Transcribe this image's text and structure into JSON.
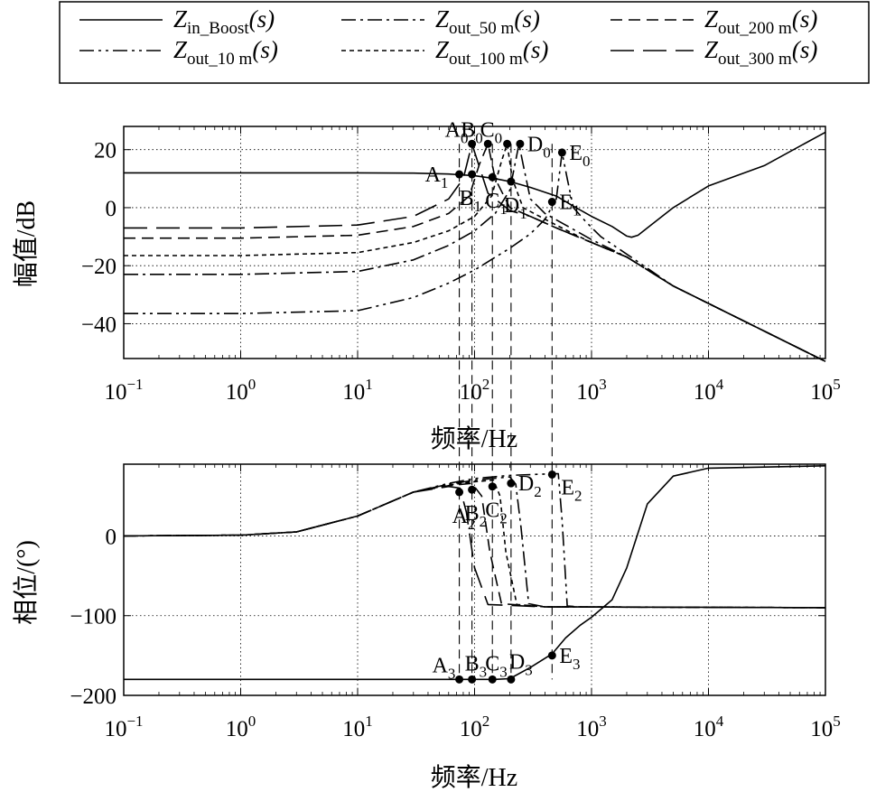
{
  "legend": {
    "entries": [
      {
        "key": "zin_boost",
        "main": "Z",
        "sub": "in_Boost",
        "tail": "(s)",
        "dash": ""
      },
      {
        "key": "zout_50",
        "main": "Z",
        "sub": "out_50 m",
        "tail": "(s)",
        "dash": "16,5,3,5"
      },
      {
        "key": "zout_200",
        "main": "Z",
        "sub": "out_200 m",
        "tail": "(s)",
        "dash": "13,7"
      },
      {
        "key": "zout_10",
        "main": "Z",
        "sub": "out_10 m",
        "tail": "(s)",
        "dash": "16,5,3,5,3,5"
      },
      {
        "key": "zout_100",
        "main": "Z",
        "sub": "out_100 m",
        "tail": "(s)",
        "dash": "5,4"
      },
      {
        "key": "zout_300",
        "main": "Z",
        "sub": "out_300 m",
        "tail": "(s)",
        "dash": "26,10"
      }
    ]
  },
  "chart_data": [
    {
      "type": "line",
      "name": "magnitude",
      "xscale": "log",
      "xlim": [
        0.1,
        100000
      ],
      "ylim": [
        -52,
        28
      ],
      "xticks": [
        {
          "base": "10",
          "exp": "−1"
        },
        {
          "base": "10",
          "exp": "0"
        },
        {
          "base": "10",
          "exp": "1"
        },
        {
          "base": "10",
          "exp": "2"
        },
        {
          "base": "10",
          "exp": "3"
        },
        {
          "base": "10",
          "exp": "4"
        },
        {
          "base": "10",
          "exp": "5"
        }
      ],
      "yticks": [
        "20",
        "0",
        "−20",
        "−40"
      ],
      "ytick_values": [
        20,
        0,
        -20,
        -40
      ],
      "xlabel": "频率/Hz",
      "ylabel": "幅值/dB",
      "grid": true,
      "series": [
        {
          "key": "zin_boost",
          "dash": "",
          "x": [
            0.1,
            10,
            30,
            60,
            100,
            150,
            200,
            300,
            500,
            700,
            1000,
            1500,
            2000,
            2200,
            2500,
            3000,
            5000,
            10000,
            30000,
            100000
          ],
          "y": [
            12,
            12,
            11.9,
            11.6,
            11,
            10,
            9,
            7,
            4,
            0.5,
            -3,
            -6.5,
            -9.8,
            -10.2,
            -9.5,
            -7,
            0,
            7.5,
            14.5,
            26
          ]
        },
        {
          "key": "zout_10",
          "dash": "16,5,3,5,3,5",
          "x": [
            0.1,
            1,
            10,
            30,
            60,
            100,
            200,
            300,
            400,
            500,
            560,
            620,
            700,
            900,
            1200,
            2000,
            5000,
            100000
          ],
          "y": [
            -36.5,
            -36.5,
            -35.5,
            -31,
            -26,
            -21.5,
            -14,
            -9,
            -4,
            3,
            19,
            10,
            0,
            -5,
            -10,
            -16,
            -27,
            -53
          ]
        },
        {
          "key": "zout_50",
          "dash": "16,5,3,5",
          "x": [
            0.1,
            1,
            10,
            30,
            60,
            100,
            150,
            200,
            240,
            260,
            300,
            400,
            600,
            1000,
            2000,
            5000,
            100000
          ],
          "y": [
            -23,
            -23,
            -22,
            -18,
            -13,
            -8,
            -2,
            6,
            22,
            15,
            3,
            -2,
            -6,
            -11,
            -17,
            -27,
            -53
          ]
        },
        {
          "key": "zout_100",
          "dash": "5,4",
          "x": [
            0.1,
            1,
            10,
            30,
            60,
            100,
            140,
            170,
            190,
            210,
            260,
            400,
            700,
            1000,
            2000,
            5000,
            100000
          ],
          "y": [
            -16.5,
            -16.5,
            -15.5,
            -12,
            -8,
            -3,
            4,
            16,
            22,
            10,
            0,
            -4,
            -9,
            -12,
            -17,
            -27,
            -53
          ]
        },
        {
          "key": "zout_200",
          "dash": "13,7",
          "x": [
            0.1,
            1,
            10,
            30,
            60,
            90,
            110,
            130,
            150,
            200,
            300,
            500,
            1000,
            2000,
            5000,
            100000
          ],
          "y": [
            -10.5,
            -10.5,
            -9.5,
            -6.5,
            -2,
            4,
            15,
            22,
            10,
            0,
            -3,
            -7,
            -12,
            -17,
            -27,
            -53
          ]
        },
        {
          "key": "zout_300",
          "dash": "26,10",
          "x": [
            0.1,
            1,
            10,
            30,
            60,
            80,
            95,
            110,
            130,
            200,
            300,
            500,
            1000,
            2000,
            5000,
            100000
          ],
          "y": [
            -7,
            -7,
            -6,
            -3,
            3,
            10,
            22,
            14,
            5,
            -1,
            -3,
            -7,
            -12,
            -17,
            -27,
            -53
          ]
        }
      ],
      "points": [
        {
          "label": "A",
          "sub": "0",
          "x": 95,
          "y": 22,
          "lpos": "ul"
        },
        {
          "label": "B",
          "sub": "0",
          "x": 130,
          "y": 22,
          "lpos": "ul"
        },
        {
          "label": "C",
          "sub": "0",
          "x": 190,
          "y": 22,
          "lpos": "ul"
        },
        {
          "label": "D",
          "sub": "0",
          "x": 245,
          "y": 22,
          "lpos": "r"
        },
        {
          "label": "E",
          "sub": "0",
          "x": 560,
          "y": 19,
          "lpos": "r"
        },
        {
          "label": "A",
          "sub": "1",
          "x": 74,
          "y": 11.5,
          "lpos": "l"
        },
        {
          "label": "B",
          "sub": "1",
          "x": 95,
          "y": 11.5,
          "lpos": "bl"
        },
        {
          "label": "C",
          "sub": "1",
          "x": 142,
          "y": 10.5,
          "lpos": "b"
        },
        {
          "label": "D",
          "sub": "1",
          "x": 205,
          "y": 9,
          "lpos": "b"
        },
        {
          "label": "E",
          "sub": "1",
          "x": 460,
          "y": 2,
          "lpos": "r"
        }
      ]
    },
    {
      "type": "line",
      "name": "phase",
      "xscale": "log",
      "xlim": [
        0.1,
        100000
      ],
      "ylim": [
        -200,
        90
      ],
      "xticks": [
        {
          "base": "10",
          "exp": "−1"
        },
        {
          "base": "10",
          "exp": "0"
        },
        {
          "base": "10",
          "exp": "1"
        },
        {
          "base": "10",
          "exp": "2"
        },
        {
          "base": "10",
          "exp": "3"
        },
        {
          "base": "10",
          "exp": "4"
        },
        {
          "base": "10",
          "exp": "5"
        }
      ],
      "yticks": [
        "0",
        "−100",
        "−200"
      ],
      "ytick_values": [
        0,
        -100,
        -200
      ],
      "xlabel": "频率/Hz",
      "ylabel": "相位/(°)",
      "grid": true,
      "series": [
        {
          "key": "zin_boost",
          "dash": "",
          "x": [
            0.1,
            10,
            50,
            100,
            150,
            200,
            300,
            460,
            600,
            800,
            1000,
            1500,
            2000,
            3000,
            5000,
            10000,
            100000
          ],
          "y": [
            -180,
            -180,
            -180,
            -180,
            -180,
            -179,
            -165,
            -148,
            -128,
            -112,
            -102,
            -80,
            -40,
            40,
            75,
            85,
            88
          ]
        },
        {
          "key": "zout_10",
          "dash": "16,5,3,5,3,5",
          "x": [
            0.1,
            1,
            3,
            10,
            30,
            60,
            100,
            200,
            460,
            520,
            560,
            620,
            800,
            1000,
            100000
          ],
          "y": [
            0,
            1,
            5,
            25,
            55,
            66,
            72,
            76,
            78,
            78,
            20,
            -88,
            -89,
            -89,
            -90
          ]
        },
        {
          "key": "zout_50",
          "dash": "16,5,3,5",
          "x": [
            0.1,
            1,
            3,
            10,
            30,
            60,
            100,
            200,
            225,
            250,
            290,
            400,
            100000
          ],
          "y": [
            0,
            1,
            5,
            25,
            55,
            65,
            70,
            74,
            65,
            10,
            -85,
            -89,
            -90
          ]
        },
        {
          "key": "zout_100",
          "dash": "5,4",
          "x": [
            0.1,
            1,
            3,
            10,
            30,
            60,
            100,
            145,
            165,
            185,
            230,
            400,
            100000
          ],
          "y": [
            0,
            1,
            5,
            25,
            55,
            64,
            68,
            70,
            50,
            -20,
            -86,
            -89,
            -90
          ]
        },
        {
          "key": "zout_200",
          "dash": "13,7",
          "x": [
            0.1,
            1,
            3,
            10,
            30,
            60,
            95,
            115,
            135,
            170,
            400,
            100000
          ],
          "y": [
            0,
            1,
            5,
            25,
            55,
            63,
            66,
            50,
            -20,
            -85,
            -89,
            -90
          ]
        },
        {
          "key": "zout_300",
          "dash": "26,10",
          "x": [
            0.1,
            1,
            3,
            10,
            30,
            60,
            75,
            85,
            100,
            130,
            400,
            100000
          ],
          "y": [
            0,
            1,
            5,
            25,
            55,
            62,
            60,
            30,
            -40,
            -86,
            -89,
            -90
          ]
        }
      ],
      "points": [
        {
          "label": "A",
          "sub": "2",
          "x": 74,
          "y": 55,
          "lpos": "b"
        },
        {
          "label": "B",
          "sub": "2",
          "x": 95,
          "y": 58,
          "lpos": "b"
        },
        {
          "label": "C",
          "sub": "2",
          "x": 142,
          "y": 62,
          "lpos": "b"
        },
        {
          "label": "D",
          "sub": "2",
          "x": 205,
          "y": 66,
          "lpos": "r"
        },
        {
          "label": "E",
          "sub": "2",
          "x": 460,
          "y": 77,
          "lpos": "rb"
        },
        {
          "label": "A",
          "sub": "3",
          "x": 74,
          "y": -180,
          "lpos": "ul"
        },
        {
          "label": "B",
          "sub": "3",
          "x": 95,
          "y": -180,
          "lpos": "u"
        },
        {
          "label": "C",
          "sub": "3",
          "x": 142,
          "y": -180,
          "lpos": "u"
        },
        {
          "label": "D",
          "sub": "3",
          "x": 205,
          "y": -180,
          "lpos": "ur"
        },
        {
          "label": "E",
          "sub": "3",
          "x": 460,
          "y": -150,
          "lpos": "r"
        }
      ]
    }
  ],
  "guide_lines": {
    "x": [
      74,
      95,
      142,
      205,
      460
    ]
  }
}
